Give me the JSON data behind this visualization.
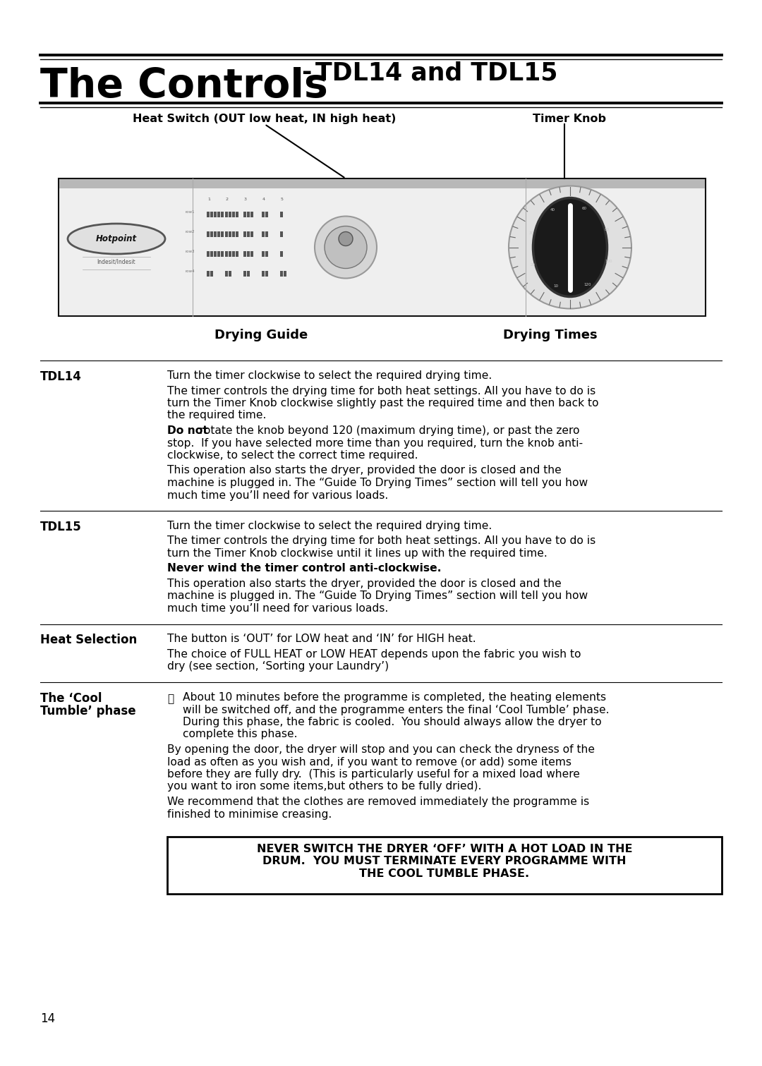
{
  "bg": "#ffffff",
  "title_large": "The Controls",
  "title_sep": " - ",
  "title_small": "TDL14 and TDL15",
  "lbl_heat": "Heat Switch (OUT low heat, IN high heat)",
  "lbl_timer": "Timer Knob",
  "lbl_guide": "Drying Guide",
  "lbl_times": "Drying Times",
  "page": "14",
  "LM": 57,
  "RM": 1023,
  "COL2": 237,
  "sections": [
    {
      "hdr": "TDL14",
      "blocks": [
        {
          "t": "Turn the timer clockwise to select the required drying time.",
          "b": false
        },
        {
          "t": "The timer controls the drying time for both heat settings. All you have to do is\nturn the Timer Knob clockwise slightly past the required time and then back to\nthe required time.",
          "b": false
        },
        {
          "pfx": "Do not",
          "sfx": " rotate the knob beyond 120 (maximum drying time), or past the zero\nstop.  If you have selected more time than you required, turn the knob anti-\nclockwise, to select the correct time required."
        },
        {
          "t": "This operation also starts the dryer, provided the door is closed and the\nmachine is plugged in. The “Guide To Drying Times” section will tell you how\nmuch time you’ll need for various loads.",
          "b": false
        }
      ]
    },
    {
      "hdr": "TDL15",
      "blocks": [
        {
          "t": "Turn the timer clockwise to select the required drying time.",
          "b": false
        },
        {
          "t": "The timer controls the drying time for both heat settings. All you have to do is\nturn the Timer Knob clockwise until it lines up with the required time.",
          "b": false
        },
        {
          "t": "Never wind the timer control anti-clockwise.",
          "b": true
        },
        {
          "t": "This operation also starts the dryer, provided the door is closed and the\nmachine is plugged in. The “Guide To Drying Times” section will tell you how\nmuch time you’ll need for various loads.",
          "b": false
        }
      ]
    },
    {
      "hdr": "Heat Selection",
      "blocks": [
        {
          "t": "The button is ‘OUT’ for LOW heat and ‘IN’ for HIGH heat.",
          "b": false
        },
        {
          "t": "The choice of FULL HEAT or LOW HEAT depends upon the fabric you wish to\ndry (see section, ‘Sorting your Laundry’)",
          "b": false
        }
      ]
    },
    {
      "hdr": "The ‘Cool\nTumble’ phase",
      "icon": true,
      "blocks": [
        {
          "t": "About 10 minutes before the programme is completed, the heating elements\nwill be switched off, and the programme enters the final ‘Cool Tumble’ phase.\nDuring this phase, the fabric is cooled.  You should always allow the dryer to\ncomplete this phase.",
          "b": false
        },
        {
          "t": "By opening the door, the dryer will stop and you can check the dryness of the\nload as often as you wish and, if you want to remove (or add) some items\nbefore they are fully dry.  (This is particularly useful for a mixed load where\nyou want to iron some items,but others to be fully dried).",
          "b": false
        },
        {
          "t": "We recommend that the clothes are removed immediately the programme is\nfinished to minimise creasing.",
          "b": false
        }
      ]
    }
  ],
  "warning": "NEVER SWITCH THE DRYER ‘OFF’ WITH A HOT LOAD IN THE\nDRUM.  YOU MUST TERMINATE EVERY PROGRAMME WITH\nTHE COOL TUMBLE PHASE."
}
